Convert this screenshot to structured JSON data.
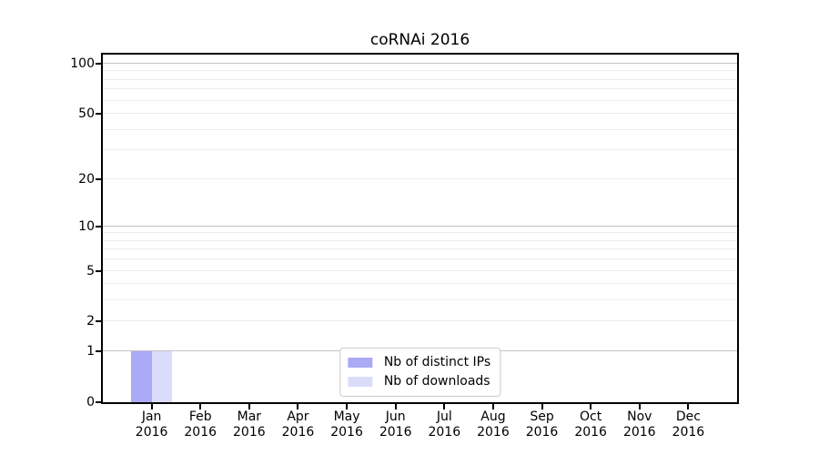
{
  "chart_data": {
    "type": "bar",
    "title": "coRNAi 2016",
    "categories": [
      "Jan",
      "Feb",
      "Mar",
      "Apr",
      "May",
      "Jun",
      "Jul",
      "Aug",
      "Sep",
      "Oct",
      "Nov",
      "Dec"
    ],
    "category_year": "2016",
    "series": [
      {
        "name": "Nb of distinct IPs",
        "color": "#aaaaf6",
        "values": [
          1,
          0,
          0,
          0,
          0,
          0,
          0,
          0,
          0,
          0,
          0,
          0
        ]
      },
      {
        "name": "Nb of downloads",
        "color": "#dbdcfa",
        "values": [
          1,
          0,
          0,
          0,
          0,
          0,
          0,
          0,
          0,
          0,
          0,
          0
        ]
      }
    ],
    "yscale": "log1p",
    "ylim": [
      0,
      100
    ],
    "yticks": [
      0,
      1,
      2,
      5,
      10,
      20,
      50,
      100
    ],
    "grid_major_at": [
      1,
      10,
      100
    ],
    "grid_minor_at": [
      2,
      3,
      4,
      5,
      6,
      7,
      8,
      9,
      20,
      30,
      40,
      50,
      60,
      70,
      80,
      90
    ],
    "grid": true,
    "legend_position": "lower center",
    "colors": {
      "grid_major": "#c2c2c2",
      "grid_minor": "#ececec",
      "axis": "#000000",
      "text": "#000000",
      "background": "#ffffff"
    }
  }
}
